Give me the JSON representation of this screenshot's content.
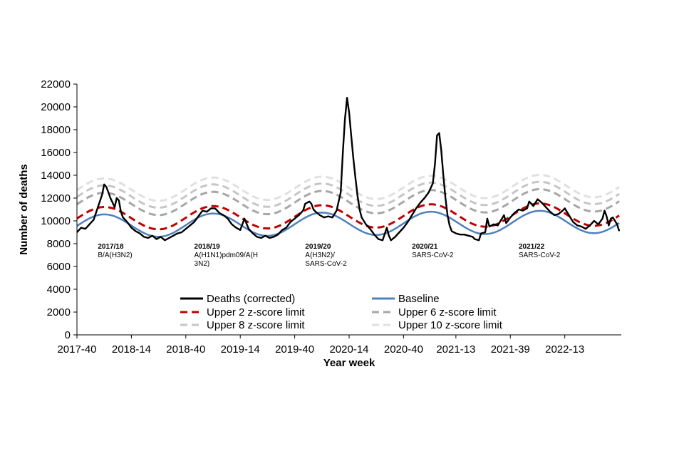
{
  "chart_data": {
    "type": "line",
    "xlabel": "Year week",
    "ylabel": "Number of deaths",
    "ylim": [
      0,
      22000
    ],
    "yticks": [
      0,
      2000,
      4000,
      6000,
      8000,
      10000,
      12000,
      14000,
      16000,
      18000,
      20000,
      22000
    ],
    "xlim": [
      0,
      260
    ],
    "xticks": [
      {
        "label": "2017-40",
        "week": 0
      },
      {
        "label": "2018-14",
        "week": 26
      },
      {
        "label": "2018-40",
        "week": 52
      },
      {
        "label": "2019-14",
        "week": 78
      },
      {
        "label": "2019-40",
        "week": 104
      },
      {
        "label": "2020-14",
        "week": 130
      },
      {
        "label": "2020-40",
        "week": 156
      },
      {
        "label": "2021-13",
        "week": 181
      },
      {
        "label": "2021-39",
        "week": 207
      },
      {
        "label": "2022-13",
        "week": 233
      }
    ],
    "baseline_curve": {
      "mid": 9550,
      "amplitude": 1000,
      "period_weeks": 52,
      "peak_week": 13,
      "trend_per_week": 1.5
    },
    "z_score_limits": [
      {
        "key": "upper2",
        "offset": 650
      },
      {
        "key": "upper6",
        "offset": 1900
      },
      {
        "key": "upper8",
        "offset": 2550
      },
      {
        "key": "upper10",
        "offset": 3150
      }
    ],
    "series": [
      {
        "key": "deaths",
        "name": "Deaths (corrected)",
        "color": "#000000",
        "style": "solid",
        "points": [
          [
            0,
            9000
          ],
          [
            2,
            9400
          ],
          [
            4,
            9300
          ],
          [
            6,
            9700
          ],
          [
            8,
            10100
          ],
          [
            10,
            11200
          ],
          [
            12,
            12300
          ],
          [
            13,
            13200
          ],
          [
            14,
            13000
          ],
          [
            15,
            12500
          ],
          [
            16,
            12000
          ],
          [
            17,
            11600
          ],
          [
            18,
            11200
          ],
          [
            19,
            12000
          ],
          [
            20,
            11800
          ],
          [
            21,
            10800
          ],
          [
            22,
            10300
          ],
          [
            24,
            9900
          ],
          [
            26,
            9400
          ],
          [
            28,
            9100
          ],
          [
            30,
            8900
          ],
          [
            32,
            8600
          ],
          [
            34,
            8500
          ],
          [
            36,
            8700
          ],
          [
            38,
            8400
          ],
          [
            40,
            8600
          ],
          [
            42,
            8300
          ],
          [
            44,
            8500
          ],
          [
            46,
            8700
          ],
          [
            48,
            8900
          ],
          [
            50,
            9000
          ],
          [
            52,
            9300
          ],
          [
            54,
            9600
          ],
          [
            56,
            9900
          ],
          [
            58,
            10400
          ],
          [
            60,
            10900
          ],
          [
            62,
            10800
          ],
          [
            64,
            11100
          ],
          [
            66,
            11100
          ],
          [
            68,
            10700
          ],
          [
            70,
            10500
          ],
          [
            72,
            10200
          ],
          [
            74,
            9700
          ],
          [
            76,
            9400
          ],
          [
            78,
            9200
          ],
          [
            80,
            10200
          ],
          [
            82,
            9300
          ],
          [
            84,
            8900
          ],
          [
            86,
            8600
          ],
          [
            88,
            8500
          ],
          [
            90,
            8700
          ],
          [
            92,
            8500
          ],
          [
            94,
            8600
          ],
          [
            96,
            8800
          ],
          [
            98,
            9200
          ],
          [
            100,
            9400
          ],
          [
            102,
            9900
          ],
          [
            104,
            10200
          ],
          [
            106,
            10500
          ],
          [
            108,
            10900
          ],
          [
            109,
            11500
          ],
          [
            110,
            11600
          ],
          [
            111,
            11700
          ],
          [
            112,
            11500
          ],
          [
            113,
            11000
          ],
          [
            114,
            10800
          ],
          [
            116,
            10500
          ],
          [
            118,
            10300
          ],
          [
            120,
            10400
          ],
          [
            122,
            10300
          ],
          [
            124,
            10900
          ],
          [
            126,
            12500
          ],
          [
            127,
            16000
          ],
          [
            128,
            18900
          ],
          [
            129,
            20800
          ],
          [
            130,
            19500
          ],
          [
            131,
            17500
          ],
          [
            132,
            15500
          ],
          [
            133,
            13800
          ],
          [
            134,
            12200
          ],
          [
            135,
            11000
          ],
          [
            136,
            10300
          ],
          [
            138,
            9700
          ],
          [
            140,
            9300
          ],
          [
            142,
            8800
          ],
          [
            144,
            8400
          ],
          [
            146,
            8300
          ],
          [
            148,
            9400
          ],
          [
            149,
            8700
          ],
          [
            150,
            8300
          ],
          [
            152,
            8600
          ],
          [
            154,
            9000
          ],
          [
            156,
            9400
          ],
          [
            158,
            9900
          ],
          [
            160,
            10500
          ],
          [
            162,
            11100
          ],
          [
            164,
            11600
          ],
          [
            166,
            12000
          ],
          [
            168,
            12500
          ],
          [
            170,
            13300
          ],
          [
            171,
            15000
          ],
          [
            172,
            17500
          ],
          [
            173,
            17700
          ],
          [
            174,
            16200
          ],
          [
            175,
            14000
          ],
          [
            176,
            12000
          ],
          [
            177,
            10500
          ],
          [
            178,
            9600
          ],
          [
            179,
            9100
          ],
          [
            181,
            8900
          ],
          [
            183,
            8800
          ],
          [
            185,
            8800
          ],
          [
            187,
            8700
          ],
          [
            189,
            8600
          ],
          [
            190,
            8400
          ],
          [
            192,
            8300
          ],
          [
            193,
            8900
          ],
          [
            195,
            9000
          ],
          [
            196,
            10200
          ],
          [
            197,
            9500
          ],
          [
            199,
            9700
          ],
          [
            201,
            9600
          ],
          [
            203,
            10200
          ],
          [
            204,
            10500
          ],
          [
            205,
            9800
          ],
          [
            207,
            10300
          ],
          [
            209,
            10700
          ],
          [
            211,
            11000
          ],
          [
            213,
            10900
          ],
          [
            215,
            11100
          ],
          [
            216,
            11700
          ],
          [
            218,
            11300
          ],
          [
            220,
            11900
          ],
          [
            222,
            11600
          ],
          [
            224,
            11200
          ],
          [
            226,
            10800
          ],
          [
            228,
            10500
          ],
          [
            230,
            10600
          ],
          [
            232,
            10900
          ],
          [
            233,
            11100
          ],
          [
            235,
            10500
          ],
          [
            237,
            9900
          ],
          [
            239,
            9600
          ],
          [
            241,
            9500
          ],
          [
            243,
            9300
          ],
          [
            245,
            9600
          ],
          [
            247,
            10000
          ],
          [
            249,
            9700
          ],
          [
            251,
            10200
          ],
          [
            252,
            10900
          ],
          [
            253,
            10400
          ],
          [
            254,
            9600
          ],
          [
            255,
            10200
          ],
          [
            256,
            10300
          ],
          [
            258,
            9700
          ],
          [
            259,
            9100
          ]
        ]
      },
      {
        "key": "baseline",
        "name": "Baseline",
        "color": "#4F81BD",
        "style": "solid"
      },
      {
        "key": "upper2",
        "name": "Upper 2 z-score limit",
        "color": "#C00000",
        "style": "dashed"
      },
      {
        "key": "upper6",
        "name": "Upper 6 z-score limit",
        "color": "#A6A6A6",
        "style": "dashed"
      },
      {
        "key": "upper8",
        "name": "Upper 8 z-score limit",
        "color": "#C6C6C6",
        "style": "dashed"
      },
      {
        "key": "upper10",
        "name": "Upper 10 z-score limit",
        "color": "#E0E0E0",
        "style": "dashed"
      }
    ],
    "annotations": [
      {
        "season": "2017/18",
        "lines": [
          "B/A(H3N2)"
        ],
        "week": 10
      },
      {
        "season": "2018/19",
        "lines": [
          "A(H1N1)pdm09/A(H",
          "3N2)"
        ],
        "week": 56
      },
      {
        "season": "2019/20",
        "lines": [
          "A(H3N2)/",
          "SARS-CoV-2"
        ],
        "week": 109
      },
      {
        "season": "2020/21",
        "lines": [
          "SARS-CoV-2"
        ],
        "week": 160
      },
      {
        "season": "2021/22",
        "lines": [
          "SARS-CoV-2"
        ],
        "week": 211
      }
    ],
    "legend_placement": "inside-bottom"
  }
}
